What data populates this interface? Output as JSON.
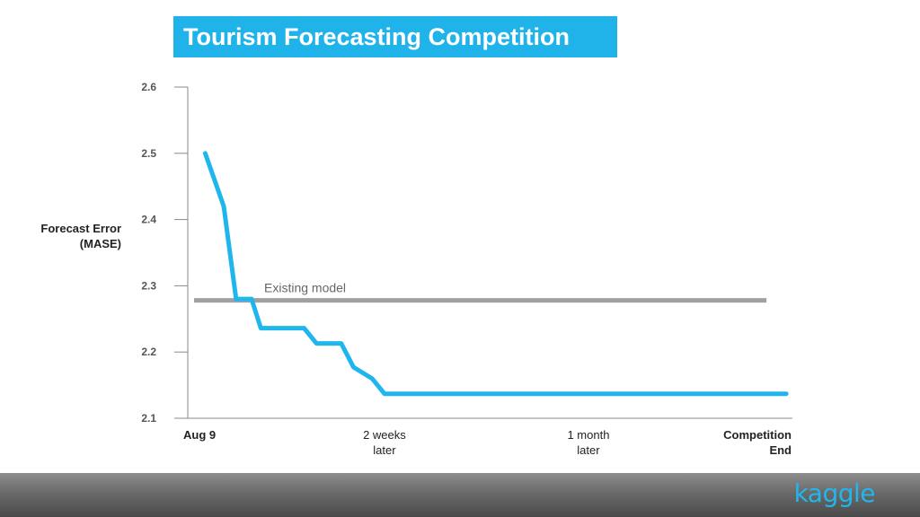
{
  "colors": {
    "accent": "#1fb3ea",
    "line": "#1fb6ee",
    "reference": "#a0a0a0",
    "axis": "#888888",
    "footer": "#666666"
  },
  "chart_data": {
    "type": "line",
    "title": "Tourism Forecasting Competition",
    "ylabel_lines": [
      "Forecast Error",
      "(MASE)"
    ],
    "ylim": [
      2.1,
      2.6
    ],
    "yticks": [
      "2.6",
      "2.5",
      "2.4",
      "2.3",
      "2.2",
      "2.1"
    ],
    "xlim": [
      0,
      1
    ],
    "xticks": [
      {
        "value": 0.0,
        "lines": [
          "Aug 9"
        ],
        "bold": true,
        "align": "left"
      },
      {
        "value": 0.34,
        "lines": [
          "2 weeks",
          "later"
        ],
        "bold": false,
        "align": "center"
      },
      {
        "value": 0.67,
        "lines": [
          "1 month",
          "later"
        ],
        "bold": false,
        "align": "center"
      },
      {
        "value": 1.0,
        "lines": [
          "Competition",
          "End"
        ],
        "bold": true,
        "align": "right"
      }
    ],
    "grid": false,
    "series": [
      {
        "x": [
          0.05,
          0.08,
          0.1,
          0.125,
          0.14,
          0.16,
          0.21,
          0.23,
          0.27,
          0.29,
          0.32,
          0.34,
          0.37,
          0.99
        ],
        "y": [
          2.5,
          2.42,
          2.28,
          2.28,
          2.236,
          2.236,
          2.236,
          2.213,
          2.213,
          2.177,
          2.16,
          2.137,
          2.137,
          2.137
        ]
      }
    ],
    "reference_lines": [
      {
        "label": "Existing model",
        "y": 2.278,
        "x_start": 0.0,
        "x_end": 0.99
      }
    ]
  },
  "footer": {
    "logo_text": "kaggle"
  }
}
